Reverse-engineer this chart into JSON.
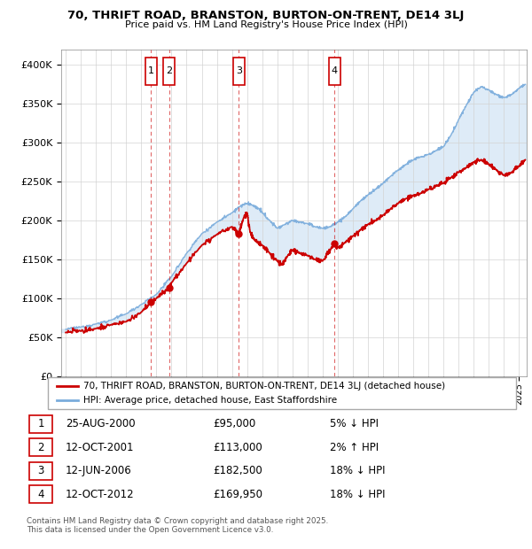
{
  "title": "70, THRIFT ROAD, BRANSTON, BURTON-ON-TRENT, DE14 3LJ",
  "subtitle": "Price paid vs. HM Land Registry's House Price Index (HPI)",
  "property_label": "70, THRIFT ROAD, BRANSTON, BURTON-ON-TRENT, DE14 3LJ (detached house)",
  "hpi_label": "HPI: Average price, detached house, East Staffordshire",
  "footer": "Contains HM Land Registry data © Crown copyright and database right 2025.\nThis data is licensed under the Open Government Licence v3.0.",
  "property_color": "#cc0000",
  "hpi_color": "#7aacdc",
  "shade_color": "#c8dff2",
  "transactions": [
    {
      "num": 1,
      "date": "25-AUG-2000",
      "price": 95000,
      "pct": "5%",
      "dir": "↓",
      "x_year": 2000.65
    },
    {
      "num": 2,
      "date": "12-OCT-2001",
      "price": 113000,
      "pct": "2%",
      "dir": "↑",
      "x_year": 2001.83
    },
    {
      "num": 3,
      "date": "12-JUN-2006",
      "price": 182500,
      "pct": "18%",
      "dir": "↓",
      "x_year": 2006.45
    },
    {
      "num": 4,
      "date": "12-OCT-2012",
      "price": 169950,
      "pct": "18%",
      "dir": "↓",
      "x_year": 2012.78
    }
  ],
  "ylim": [
    0,
    420000
  ],
  "yticks": [
    0,
    50000,
    100000,
    150000,
    200000,
    250000,
    300000,
    350000,
    400000
  ],
  "xlim_start": 1994.7,
  "xlim_end": 2025.5,
  "hpi_waypoints": [
    [
      1995.0,
      60000
    ],
    [
      1996.0,
      63000
    ],
    [
      1997.0,
      67000
    ],
    [
      1998.0,
      72000
    ],
    [
      1999.0,
      80000
    ],
    [
      2000.0,
      92000
    ],
    [
      2001.0,
      105000
    ],
    [
      2002.0,
      128000
    ],
    [
      2003.0,
      158000
    ],
    [
      2004.0,
      183000
    ],
    [
      2005.0,
      198000
    ],
    [
      2006.0,
      210000
    ],
    [
      2006.5,
      218000
    ],
    [
      2007.0,
      222000
    ],
    [
      2007.3,
      220000
    ],
    [
      2007.8,
      215000
    ],
    [
      2008.0,
      210000
    ],
    [
      2008.5,
      200000
    ],
    [
      2009.0,
      190000
    ],
    [
      2009.5,
      195000
    ],
    [
      2010.0,
      200000
    ],
    [
      2010.5,
      198000
    ],
    [
      2011.0,
      196000
    ],
    [
      2011.5,
      192000
    ],
    [
      2012.0,
      190000
    ],
    [
      2012.5,
      192000
    ],
    [
      2013.0,
      198000
    ],
    [
      2013.5,
      205000
    ],
    [
      2014.0,
      215000
    ],
    [
      2014.5,
      225000
    ],
    [
      2015.0,
      233000
    ],
    [
      2015.5,
      240000
    ],
    [
      2016.0,
      248000
    ],
    [
      2016.5,
      257000
    ],
    [
      2017.0,
      265000
    ],
    [
      2017.5,
      272000
    ],
    [
      2018.0,
      278000
    ],
    [
      2018.5,
      282000
    ],
    [
      2019.0,
      285000
    ],
    [
      2019.5,
      290000
    ],
    [
      2020.0,
      295000
    ],
    [
      2020.5,
      310000
    ],
    [
      2021.0,
      330000
    ],
    [
      2021.5,
      348000
    ],
    [
      2022.0,
      365000
    ],
    [
      2022.5,
      372000
    ],
    [
      2023.0,
      368000
    ],
    [
      2023.5,
      362000
    ],
    [
      2024.0,
      358000
    ],
    [
      2024.5,
      362000
    ],
    [
      2025.0,
      370000
    ],
    [
      2025.4,
      375000
    ]
  ],
  "prop_waypoints": [
    [
      1995.0,
      56000
    ],
    [
      1996.0,
      58000
    ],
    [
      1997.0,
      61000
    ],
    [
      1998.0,
      66000
    ],
    [
      1999.0,
      70000
    ],
    [
      2000.0,
      82000
    ],
    [
      2000.65,
      95000
    ],
    [
      2001.0,
      100000
    ],
    [
      2001.83,
      113000
    ],
    [
      2002.0,
      120000
    ],
    [
      2003.0,
      145000
    ],
    [
      2004.0,
      168000
    ],
    [
      2005.0,
      182000
    ],
    [
      2006.0,
      192000
    ],
    [
      2006.45,
      182500
    ],
    [
      2006.8,
      205000
    ],
    [
      2007.0,
      210000
    ],
    [
      2007.2,
      185000
    ],
    [
      2007.5,
      175000
    ],
    [
      2008.0,
      168000
    ],
    [
      2008.5,
      158000
    ],
    [
      2009.0,
      148000
    ],
    [
      2009.3,
      143000
    ],
    [
      2009.7,
      155000
    ],
    [
      2010.0,
      162000
    ],
    [
      2010.5,
      158000
    ],
    [
      2011.0,
      155000
    ],
    [
      2011.5,
      150000
    ],
    [
      2012.0,
      148000
    ],
    [
      2012.78,
      169950
    ],
    [
      2013.0,
      165000
    ],
    [
      2013.5,
      172000
    ],
    [
      2014.0,
      180000
    ],
    [
      2014.5,
      188000
    ],
    [
      2015.0,
      195000
    ],
    [
      2015.5,
      200000
    ],
    [
      2016.0,
      207000
    ],
    [
      2016.5,
      215000
    ],
    [
      2017.0,
      222000
    ],
    [
      2017.5,
      228000
    ],
    [
      2018.0,
      232000
    ],
    [
      2018.5,
      235000
    ],
    [
      2019.0,
      240000
    ],
    [
      2019.5,
      245000
    ],
    [
      2020.0,
      248000
    ],
    [
      2020.5,
      255000
    ],
    [
      2021.0,
      262000
    ],
    [
      2021.5,
      268000
    ],
    [
      2022.0,
      275000
    ],
    [
      2022.5,
      278000
    ],
    [
      2023.0,
      272000
    ],
    [
      2023.5,
      265000
    ],
    [
      2024.0,
      258000
    ],
    [
      2024.5,
      262000
    ],
    [
      2025.0,
      270000
    ],
    [
      2025.4,
      278000
    ]
  ]
}
